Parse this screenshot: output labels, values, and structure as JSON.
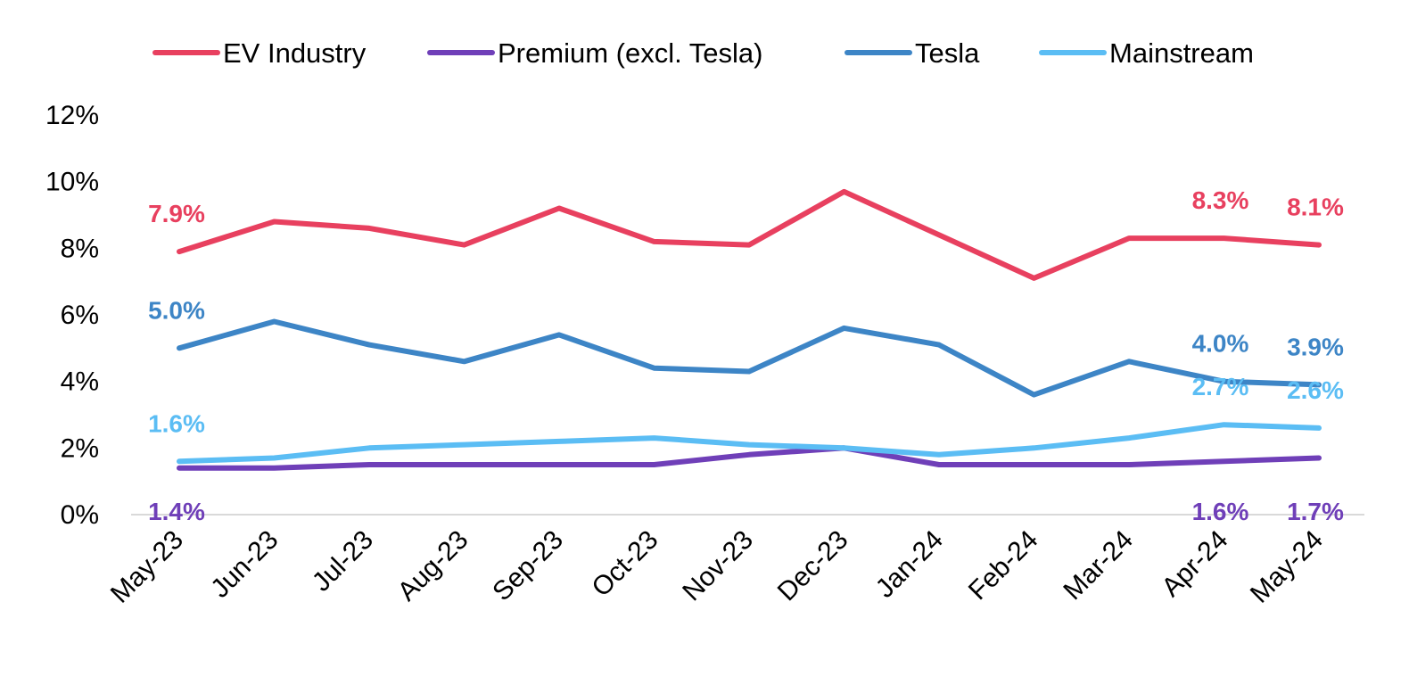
{
  "chart_data": {
    "type": "line",
    "categories": [
      "May-23",
      "Jun-23",
      "Jul-23",
      "Aug-23",
      "Sep-23",
      "Oct-23",
      "Nov-23",
      "Dec-23",
      "Jan-24",
      "Feb-24",
      "Mar-24",
      "Apr-24",
      "May-24"
    ],
    "ylim": [
      0,
      12
    ],
    "yticks": [
      0,
      2,
      4,
      6,
      8,
      10,
      12
    ],
    "y_tick_labels": [
      "0%",
      "2%",
      "4%",
      "6%",
      "8%",
      "10%",
      "12%"
    ],
    "grid": false,
    "legend_position": "top",
    "series": [
      {
        "name": "EV Industry",
        "color": "#E8405F",
        "values": [
          7.9,
          8.8,
          8.6,
          8.1,
          9.2,
          8.2,
          8.1,
          9.7,
          8.4,
          7.1,
          8.3,
          8.3,
          8.1
        ],
        "labels": [
          {
            "index": 0,
            "text": "7.9%",
            "pos": "above"
          },
          {
            "index": 11,
            "text": "8.3%",
            "pos": "above"
          },
          {
            "index": 12,
            "text": "8.1%",
            "pos": "above"
          }
        ]
      },
      {
        "name": "Premium (excl. Tesla)",
        "color": "#6F3FB8",
        "values": [
          1.4,
          1.4,
          1.5,
          1.5,
          1.5,
          1.5,
          1.8,
          2.0,
          1.5,
          1.5,
          1.5,
          1.6,
          1.7
        ],
        "labels": [
          {
            "index": 0,
            "text": "1.4%",
            "pos": "below"
          },
          {
            "index": 11,
            "text": "1.6%",
            "pos": "below"
          },
          {
            "index": 12,
            "text": "1.7%",
            "pos": "below"
          }
        ]
      },
      {
        "name": "Tesla",
        "color": "#3D85C6",
        "values": [
          5.0,
          5.8,
          5.1,
          4.6,
          5.4,
          4.4,
          4.3,
          5.6,
          5.1,
          3.6,
          4.6,
          4.0,
          3.9
        ],
        "labels": [
          {
            "index": 0,
            "text": "5.0%",
            "pos": "above"
          },
          {
            "index": 11,
            "text": "4.0%",
            "pos": "above"
          },
          {
            "index": 12,
            "text": "3.9%",
            "pos": "above"
          }
        ]
      },
      {
        "name": "Mainstream",
        "color": "#5BBDF4",
        "values": [
          1.6,
          1.7,
          2.0,
          2.1,
          2.2,
          2.3,
          2.1,
          2.0,
          1.8,
          2.0,
          2.3,
          2.7,
          2.6
        ],
        "labels": [
          {
            "index": 0,
            "text": "1.6%",
            "pos": "above"
          },
          {
            "index": 11,
            "text": "2.7%",
            "pos": "above"
          },
          {
            "index": 12,
            "text": "2.6%",
            "pos": "above"
          }
        ]
      }
    ]
  }
}
